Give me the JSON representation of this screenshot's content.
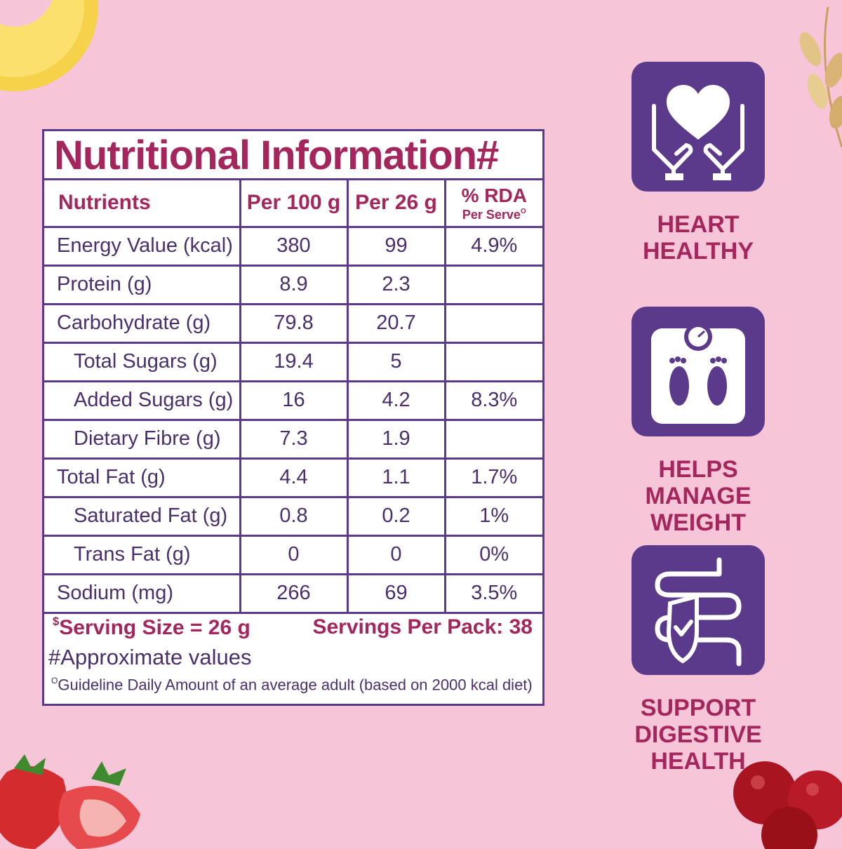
{
  "nutrition_panel": {
    "title": "Nutritional Information#",
    "headers": {
      "nutrients": "Nutrients",
      "per_100g": "Per 100 g",
      "per_serving_prefix": "Per 26 g",
      "rda": "% RDA",
      "rda_sub": "Per Serve"
    },
    "rows": [
      {
        "name": "Energy Value (kcal)",
        "per_100g": "380",
        "per_26g": "99",
        "rda": "4.9%"
      },
      {
        "name": "Protein (g)",
        "per_100g": "8.9",
        "per_26g": "2.3",
        "rda": ""
      },
      {
        "name": "Carbohydrate (g)",
        "per_100g": "79.8",
        "per_26g": "20.7",
        "rda": ""
      },
      {
        "name": "Total Sugars (g)",
        "per_100g": "19.4",
        "per_26g": "5",
        "rda": ""
      },
      {
        "name": "Added Sugars (g)",
        "per_100g": "16",
        "per_26g": "4.2",
        "rda": "8.3%"
      },
      {
        "name": "Dietary Fibre (g)",
        "per_100g": "7.3",
        "per_26g": "1.9",
        "rda": ""
      },
      {
        "name": "Total Fat (g)",
        "per_100g": "4.4",
        "per_26g": "1.1",
        "rda": "1.7%"
      },
      {
        "name": "Saturated Fat (g)",
        "per_100g": "0.8",
        "per_26g": "0.2",
        "rda": "1%"
      },
      {
        "name": "Trans Fat (g)",
        "per_100g": "0",
        "per_26g": "0",
        "rda": "0%"
      },
      {
        "name": "Sodium (mg)",
        "per_100g": "266",
        "per_26g": "69",
        "rda": "3.5%"
      }
    ],
    "footer": {
      "serving_size_mark": "$",
      "serving_size": "Serving Size = 26 g",
      "servings_per_pack": "Servings Per Pack: 38",
      "approximate_note": "#Approximate values",
      "gda_mark": "O",
      "gda_note": "Guideline Daily Amount of an average adult (based on 2000 kcal diet)"
    }
  },
  "benefits": [
    {
      "icon": "heart-hands-icon",
      "line1": "HEART",
      "line2": "HEALTHY"
    },
    {
      "icon": "weighing-scale-icon",
      "line1": "HELPS MANAGE",
      "line2": "WEIGHT"
    },
    {
      "icon": "digestive-shield-icon",
      "line1": "SUPPORT",
      "line2": "DIGESTIVE HEALTH"
    }
  ],
  "colors": {
    "background": "#f6c5d8",
    "accent_purple": "#5b3a8c",
    "title_magenta": "#a4265c",
    "text_purple": "#4a2f6d"
  }
}
